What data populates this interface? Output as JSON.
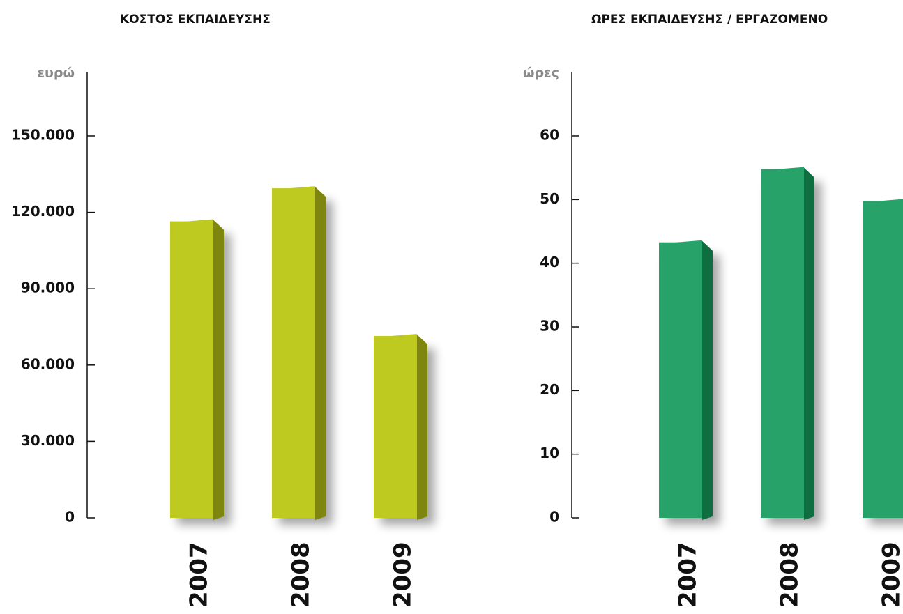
{
  "chart_data": [
    {
      "type": "bar",
      "title": "ΚΟΣΤΟΣ ΕΚΠΑΙΔΕΥΣΗΣ",
      "y_label": "ευρώ",
      "categories": [
        "2007",
        "2008",
        "2009"
      ],
      "values": [
        117000,
        130000,
        72000
      ],
      "color": "#bfca20",
      "side_color": "#7e8610",
      "ylim": [
        0,
        175000
      ],
      "yticks": [
        0,
        {
          "value": 30000,
          "label": "30.000"
        },
        {
          "value": 60000,
          "label": "60.000"
        },
        {
          "value": 90000,
          "label": "90.000"
        },
        {
          "value": 120000,
          "label": "120.000"
        },
        {
          "value": 150000,
          "label": "150.000"
        }
      ]
    },
    {
      "type": "bar",
      "title": "ΩΡΕΣ ΕΚΠΑΙΔΕΥΣΗΣ / ΕΡΓΑΖΟΜΕΝΟ",
      "y_label": "ώρες",
      "categories": [
        "2007",
        "2008",
        "2009"
      ],
      "values": [
        43.5,
        55,
        50
      ],
      "color": "#27a36a",
      "side_color": "#0f6e40",
      "ylim": [
        0,
        70
      ],
      "yticks": [
        0,
        10,
        20,
        30,
        40,
        50,
        60
      ]
    }
  ]
}
